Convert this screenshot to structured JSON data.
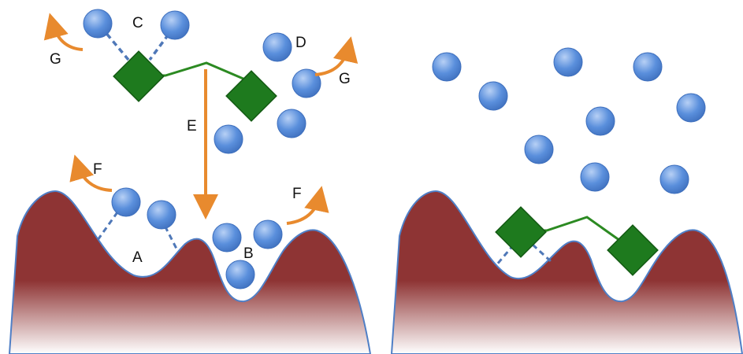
{
  "labels": {
    "A": "A",
    "B": "B",
    "C": "C",
    "D": "D",
    "E": "E",
    "F_left": "F",
    "F_right": "F",
    "G_left": "G",
    "G_right": "G"
  },
  "colors": {
    "surface_top": "#8e3434",
    "surface_bottom": "#ffffff",
    "surface_outline": "#4f7fc6",
    "sphere_fill": "#5a8fdc",
    "sphere_light": "#b7d0f5",
    "sphere_stroke": "#3e6fbd",
    "diamond_fill": "#1e7a1e",
    "diamond_stroke": "#145a14",
    "linker": "#2c8a22",
    "hbond": "#4f78b8",
    "arrow": "#e88a2e"
  },
  "icons": {
    "molecule_sphere": "circle",
    "binding_group": "diamond",
    "process_arrow": "arrow"
  }
}
